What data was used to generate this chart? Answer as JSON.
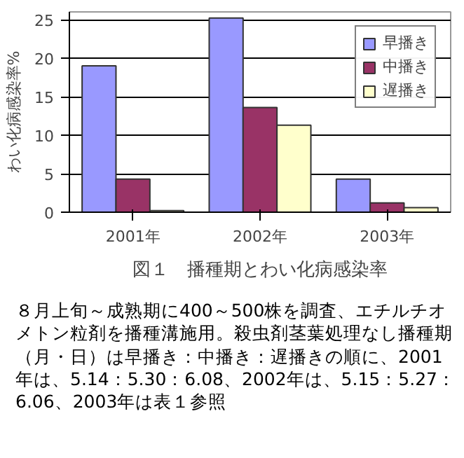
{
  "chart_data": {
    "type": "bar",
    "title": "図１　播種期とわい化病感染率",
    "ylabel": "わい化病感染率%",
    "categories": [
      "2001年",
      "2002年",
      "2003年"
    ],
    "series": [
      {
        "name": "早播き",
        "color": "#9999ff",
        "values": [
          19,
          25.2,
          4.3
        ]
      },
      {
        "name": "中播き",
        "color": "#993366",
        "values": [
          4.3,
          13.6,
          1.2
        ]
      },
      {
        "name": "遅播き",
        "color": "#ffffcc",
        "values": [
          0.2,
          11.3,
          0.6
        ]
      }
    ],
    "ylim": [
      0,
      26
    ],
    "yticks": [
      0,
      5,
      10,
      15,
      20,
      25
    ],
    "grid": "y",
    "legend": "top right",
    "annotations": [
      "８月上旬～成熟期に400～500株を調査、エチルチオメトン粒剤を播種溝施用。殺虫剤茎葉処理なし播種期（月・日）は早播き：中播き：遅播きの順に、2001年は、5.14：5.30：6.08、2002年は、5.15：5.27：6.06、2003年は表１参照"
    ]
  }
}
